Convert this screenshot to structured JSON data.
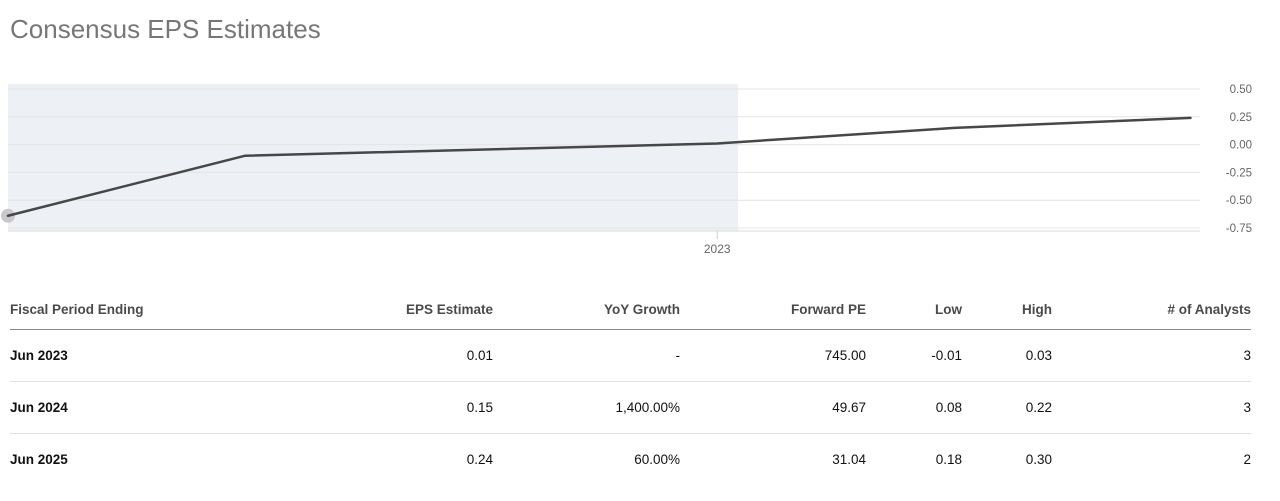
{
  "title": "Consensus EPS Estimates",
  "chart_data": {
    "type": "line",
    "title": "Consensus EPS Estimates",
    "x_axis": {
      "visible_tick": "2023",
      "tick_frac": 0.595
    },
    "y_axis": {
      "ticks": [
        0.5,
        0.25,
        0.0,
        -0.25,
        -0.5,
        -0.75
      ],
      "tick_labels": [
        "0.50",
        "0.25",
        "0.00",
        "-0.25",
        "-0.50",
        "-0.75"
      ],
      "label_color": "#666666"
    },
    "ylim": [
      -0.78,
      0.55
    ],
    "grid": true,
    "legend": false,
    "shaded_region": {
      "x_start_frac": 0.0,
      "x_end_frac": 0.6125,
      "color": "#edf0f5"
    },
    "start_marker": {
      "color": "#c9c9c9",
      "radius": 7
    },
    "series": [
      {
        "name": "Consensus EPS",
        "color": "#474747",
        "points": [
          {
            "x_frac": 0.0,
            "value": -0.64
          },
          {
            "x_frac": 0.199,
            "value": -0.1
          },
          {
            "x_frac": 0.595,
            "value": 0.01
          },
          {
            "x_frac": 0.794,
            "value": 0.15
          },
          {
            "x_frac": 0.992,
            "value": 0.24
          }
        ]
      }
    ],
    "colors": {
      "gridline": "#e4e4e4",
      "axis_line": "#d9d9d9",
      "tick": "#cfcfcf"
    }
  },
  "table": {
    "columns": [
      "Fiscal Period Ending",
      "EPS Estimate",
      "YoY Growth",
      "Forward PE",
      "Low",
      "High",
      "# of Analysts"
    ],
    "rows": [
      {
        "period": "Jun 2023",
        "eps": "0.01",
        "yoy": "-",
        "pe": "745.00",
        "low": "-0.01",
        "high": "0.03",
        "analysts": "3"
      },
      {
        "period": "Jun 2024",
        "eps": "0.15",
        "yoy": "1,400.00%",
        "pe": "49.67",
        "low": "0.08",
        "high": "0.22",
        "analysts": "3"
      },
      {
        "period": "Jun 2025",
        "eps": "0.24",
        "yoy": "60.00%",
        "pe": "31.04",
        "low": "0.18",
        "high": "0.30",
        "analysts": "2"
      }
    ]
  }
}
